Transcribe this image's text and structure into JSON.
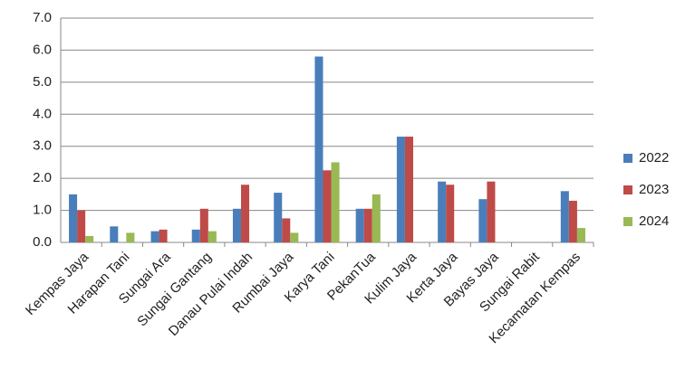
{
  "chart_data": {
    "type": "bar",
    "categories": [
      "Kempas Jaya",
      "Harapan Tani",
      "Sungai Ara",
      "Sungai Gantang",
      "Danau Pulai Indah",
      "Rumbai Jaya",
      "Karya Tani",
      "PekanTua",
      "Kulim Jaya",
      "Kerta Jaya",
      "Bayas Jaya",
      "Sungai Rabit",
      "Kecamatan Kempas"
    ],
    "series": [
      {
        "name": "2022",
        "color": "#4a7ebb",
        "values": [
          1.5,
          0.5,
          0.35,
          0.4,
          1.05,
          1.55,
          5.8,
          1.05,
          3.3,
          1.9,
          1.35,
          0,
          1.6
        ]
      },
      {
        "name": "2023",
        "color": "#be4b48",
        "values": [
          1.0,
          0,
          0.4,
          1.05,
          1.8,
          0.75,
          2.25,
          1.05,
          3.3,
          1.8,
          1.9,
          0,
          1.3
        ]
      },
      {
        "name": "2024",
        "color": "#98b954",
        "values": [
          0.2,
          0.3,
          0,
          0.35,
          0,
          0.3,
          2.5,
          1.5,
          0,
          0,
          0,
          0,
          0.45
        ]
      }
    ],
    "ylim": [
      0,
      7
    ],
    "yticks": [
      {
        "value": 0,
        "label": "0.0"
      },
      {
        "value": 1,
        "label": "1.0"
      },
      {
        "value": 2,
        "label": "2.0"
      },
      {
        "value": 3,
        "label": "3.0"
      },
      {
        "value": 4,
        "label": "4.0"
      },
      {
        "value": 5,
        "label": "5.0"
      },
      {
        "value": 6,
        "label": "6.0"
      },
      {
        "value": 7,
        "label": "7.0"
      }
    ],
    "grid": true,
    "legend": "right"
  }
}
